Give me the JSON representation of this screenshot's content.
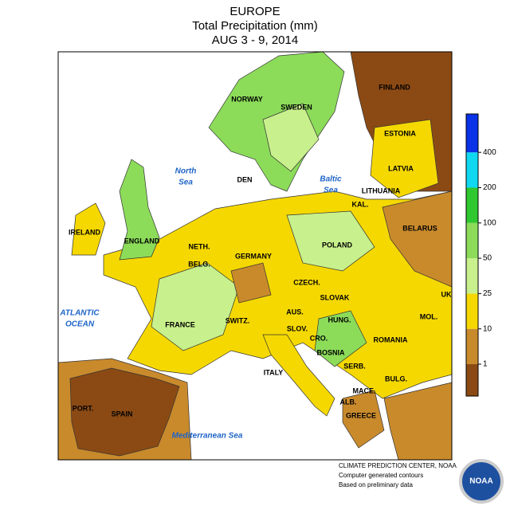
{
  "header": {
    "title": "EUROPE",
    "subtitle": "Total Precipitation (mm)",
    "dates": "AUG 3 - 9, 2014"
  },
  "countries": [
    "NORWAY",
    "SWEDEN",
    "FINLAND",
    "ESTONIA",
    "LATVIA",
    "LITHUANIA",
    "KAL.",
    "BELARUS",
    "DEN",
    "IRELAND",
    "ENGLAND",
    "NETH.",
    "BELG.",
    "GERMANY",
    "POLAND",
    "CZECH.",
    "SLOVAK",
    "UK",
    "MOL.",
    "AUS.",
    "HUNG.",
    "ROMANIA",
    "FRANCE",
    "SWITZ.",
    "SLOV.",
    "CRO.",
    "BOSNIA",
    "SERB.",
    "BULG.",
    "ITALY",
    "MACE.",
    "ALB.",
    "GREECE",
    "PORT.",
    "SPAIN"
  ],
  "seas": [
    {
      "lines": [
        "North",
        "Sea"
      ]
    },
    {
      "lines": [
        "Baltic",
        "Sea"
      ]
    },
    {
      "lines": [
        "ATLANTIC",
        "OCEAN"
      ]
    },
    {
      "lines": [
        "Mediterranean Sea"
      ]
    }
  ],
  "legend": {
    "ticks": [
      1,
      10,
      25,
      50,
      100,
      200,
      400
    ],
    "colors": [
      "#8b4a14",
      "#c98a2c",
      "#f5d800",
      "#c8f08c",
      "#8cdc5a",
      "#30c830",
      "#10d8f0",
      "#0a32e6"
    ]
  },
  "footer": {
    "lines": [
      "CLIMATE PREDICTION CENTER, NOAA",
      "Computer generated contours",
      "Based on preliminary data"
    ],
    "logo": "NOAA"
  }
}
